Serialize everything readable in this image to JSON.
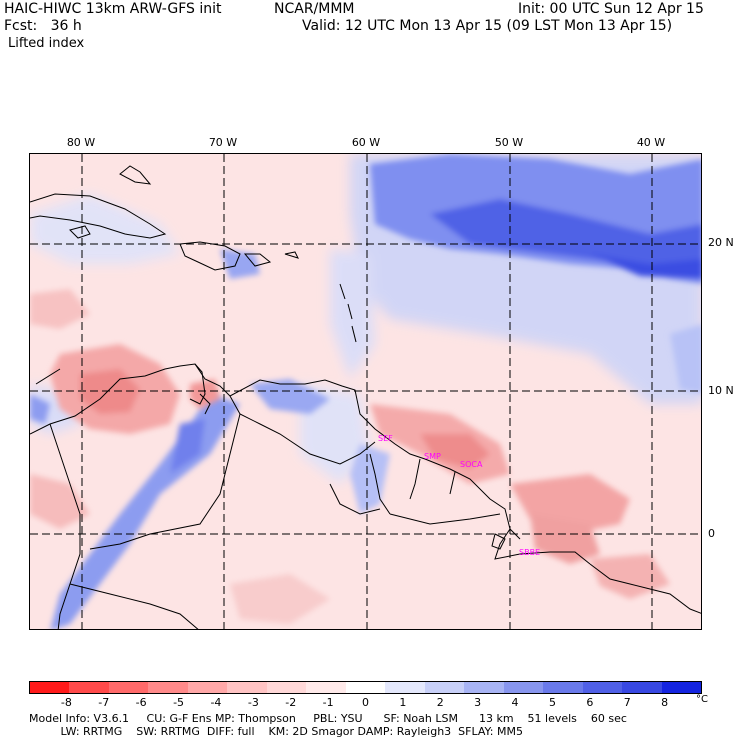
{
  "header": {
    "model_title": "HAIC-HIWC 13km ARW-GFS init",
    "org": "NCAR/MMM",
    "init": "Init: 00 UTC Sun 12 Apr 15",
    "fcst": "Fcst:   36 h",
    "valid": "Valid: 12 UTC Mon 13 Apr 15 (09 LST Mon 13 Apr 15)",
    "field": "Lifted index"
  },
  "map": {
    "lon_labels": [
      "80 W",
      "70 W",
      "60 W",
      "50 W",
      "40 W"
    ],
    "lat_labels": [
      "20 N",
      "10 N",
      "0"
    ],
    "stations": [
      "SEF",
      "SMP",
      "SOCA",
      "SBBE"
    ],
    "colors": {
      "neg_strong": "#f08080",
      "neg_weak": "#fbdede",
      "neutral": "#ffffff",
      "pos_weak": "#c8d0f8",
      "pos_strong": "#3040e0",
      "station": "#ff00ff"
    }
  },
  "colorbar": {
    "labels": [
      "-8",
      "-7",
      "-6",
      "-5",
      "-4",
      "-3",
      "-2",
      "-1",
      "0",
      "1",
      "2",
      "3",
      "4",
      "5",
      "6",
      "7",
      "8"
    ],
    "unit": "°C",
    "colors": [
      "#ff1a1a",
      "#ff4a4a",
      "#ff6a6a",
      "#ff8a8a",
      "#ffa8a8",
      "#ffc4c4",
      "#ffd8d8",
      "#ffeaea",
      "#ffffff",
      "#e4e8fc",
      "#c8d0f8",
      "#a8b4f4",
      "#8896ee",
      "#6a7aea",
      "#5060e6",
      "#3848e2",
      "#1424e0"
    ]
  },
  "footer": {
    "line1": "Model Info: V3.6.1     CU: G-F Ens MP: Thompson     PBL: YSU      SF: Noah LSM      13 km    51 levels    60 sec",
    "line2": "         LW: RRTMG    SW: RRTMG  DIFF: full    KM: 2D Smagor DAMP: Rayleigh3  SFLAY: MM5"
  }
}
